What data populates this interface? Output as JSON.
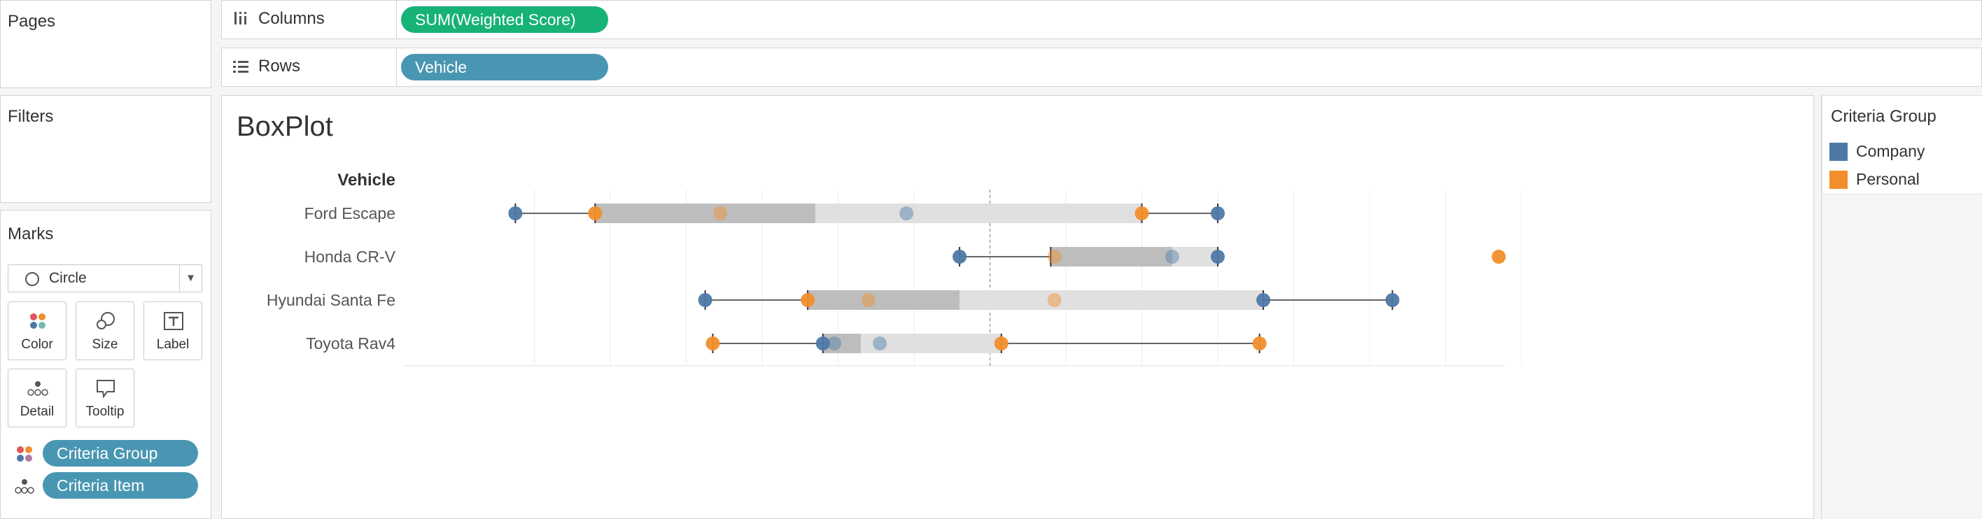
{
  "pages": {
    "title": "Pages"
  },
  "filters": {
    "title": "Filters"
  },
  "marks": {
    "title": "Marks",
    "mark_type": "Circle",
    "buttons": [
      "Color",
      "Size",
      "Label",
      "Detail",
      "Tooltip"
    ],
    "pills": [
      {
        "label": "Criteria Group",
        "icon": "color-dots-icon"
      },
      {
        "label": "Criteria Item",
        "icon": "detail-dots-icon"
      }
    ]
  },
  "columns_shelf": {
    "label": "Columns",
    "pill": "SUM(Weighted Score)"
  },
  "rows_shelf": {
    "label": "Rows",
    "pill": "Vehicle"
  },
  "viz": {
    "title": "BoxPlot",
    "row_header": "Vehicle"
  },
  "legend": {
    "title": "Criteria Group",
    "items": [
      {
        "label": "Company",
        "color": "#4e79a7"
      },
      {
        "label": "Personal",
        "color": "#f28e2b"
      }
    ]
  },
  "colors": {
    "company": "#4e79a7",
    "personal": "#f28e2b",
    "pill_blue": "#4996b2",
    "pill_green": "#17b276"
  },
  "chart_data": {
    "type": "scatter",
    "subtype": "box-plot",
    "title": "BoxPlot",
    "row_field": "Vehicle",
    "column_field": "SUM(Weighted Score)",
    "x_axis_shown": false,
    "grid": true,
    "xlim": [
      0,
      14.5
    ],
    "reference_line_x": 7,
    "categories": [
      "Ford Escape",
      "Honda CR-V",
      "Hyundai Santa Fe",
      "Toyota Rav4"
    ],
    "series": [
      {
        "name": "Company",
        "color": "#4e79a7"
      },
      {
        "name": "Personal",
        "color": "#f28e2b"
      }
    ],
    "boxes": [
      {
        "category": "Ford Escape",
        "whisker_low": 0.75,
        "q1": 1.8,
        "median": 4.7,
        "q3": 9.0,
        "whisker_high": 10.0
      },
      {
        "category": "Honda CR-V",
        "whisker_low": 6.6,
        "q1": 7.8,
        "median": 9.4,
        "q3": 10.0,
        "whisker_high": 10.0
      },
      {
        "category": "Hyundai Santa Fe",
        "whisker_low": 3.25,
        "q1": 4.6,
        "median": 6.6,
        "q3": 10.6,
        "whisker_high": 12.3
      },
      {
        "category": "Toyota Rav4",
        "whisker_low": 3.35,
        "q1": 4.8,
        "median": 5.3,
        "q3": 7.15,
        "whisker_high": 10.55
      }
    ],
    "points": [
      {
        "category": "Ford Escape",
        "group": "Company",
        "x": 0.75
      },
      {
        "category": "Ford Escape",
        "group": "Personal",
        "x": 1.8
      },
      {
        "category": "Ford Escape",
        "group": "Personal",
        "x": 3.45
      },
      {
        "category": "Ford Escape",
        "group": "Company",
        "x": 5.9
      },
      {
        "category": "Ford Escape",
        "group": "Personal",
        "x": 9.0
      },
      {
        "category": "Ford Escape",
        "group": "Company",
        "x": 10.0
      },
      {
        "category": "Honda CR-V",
        "group": "Company",
        "x": 6.6
      },
      {
        "category": "Honda CR-V",
        "group": "Personal",
        "x": 7.85
      },
      {
        "category": "Honda CR-V",
        "group": "Company",
        "x": 9.4
      },
      {
        "category": "Honda CR-V",
        "group": "Company",
        "x": 10.0
      },
      {
        "category": "Honda CR-V",
        "group": "Personal",
        "x": 13.7
      },
      {
        "category": "Hyundai Santa Fe",
        "group": "Company",
        "x": 3.25
      },
      {
        "category": "Hyundai Santa Fe",
        "group": "Personal",
        "x": 4.6
      },
      {
        "category": "Hyundai Santa Fe",
        "group": "Personal",
        "x": 5.4
      },
      {
        "category": "Hyundai Santa Fe",
        "group": "Personal",
        "x": 7.85
      },
      {
        "category": "Hyundai Santa Fe",
        "group": "Company",
        "x": 10.6
      },
      {
        "category": "Hyundai Santa Fe",
        "group": "Company",
        "x": 12.3
      },
      {
        "category": "Toyota Rav4",
        "group": "Personal",
        "x": 3.35
      },
      {
        "category": "Toyota Rav4",
        "group": "Company",
        "x": 4.8
      },
      {
        "category": "Toyota Rav4",
        "group": "Company",
        "x": 4.95
      },
      {
        "category": "Toyota Rav4",
        "group": "Company",
        "x": 5.55
      },
      {
        "category": "Toyota Rav4",
        "group": "Personal",
        "x": 7.15
      },
      {
        "category": "Toyota Rav4",
        "group": "Personal",
        "x": 10.55
      }
    ]
  }
}
